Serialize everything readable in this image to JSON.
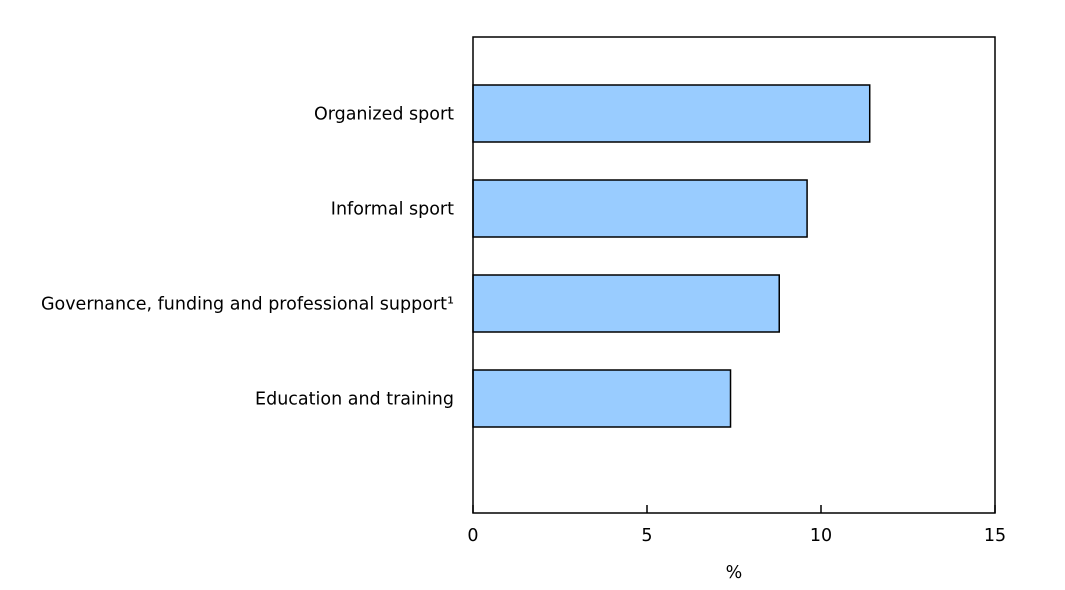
{
  "chart_data": {
    "type": "bar",
    "orientation": "horizontal",
    "categories": [
      "Organized sport",
      "Informal sport",
      "Governance, funding and professional support¹",
      "Education and training"
    ],
    "values": [
      11.4,
      9.6,
      8.8,
      7.4
    ],
    "xlabel": "%",
    "xlim": [
      0,
      15
    ],
    "xticks": [
      "0",
      "5",
      "10",
      "15"
    ],
    "grid": false,
    "legend": "none",
    "bar_color": "#99ccff",
    "bar_edge_color": "#000000"
  }
}
